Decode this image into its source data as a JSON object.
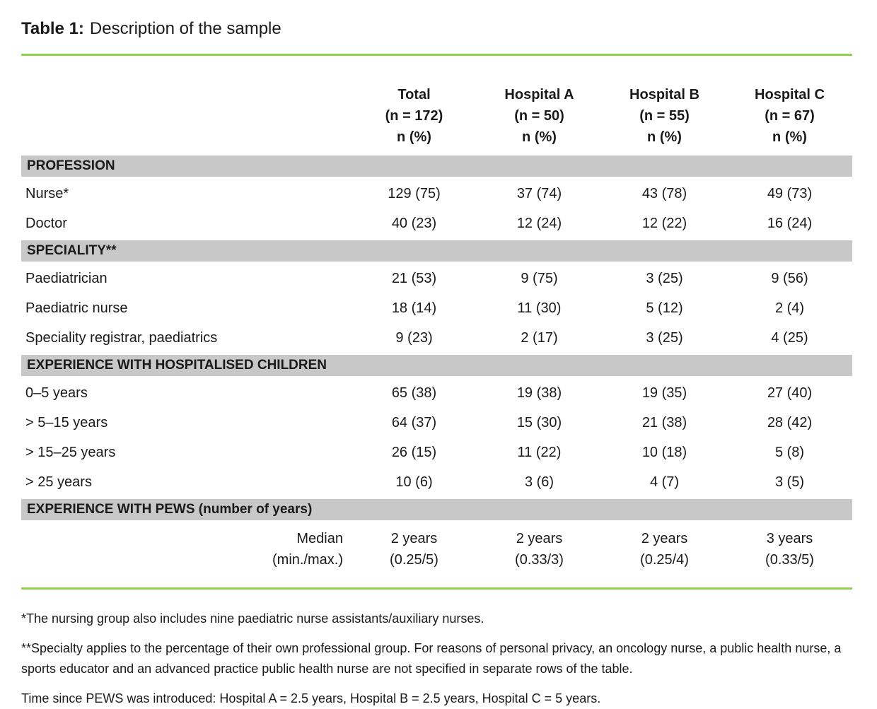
{
  "title": {
    "label": "Table 1:",
    "text": "Description of the sample"
  },
  "colors": {
    "accent_green": "#92d050",
    "section_gray": "#c8c8c8"
  },
  "table": {
    "columns": [
      {
        "label": "Total",
        "n": "(n = 172)",
        "unit": "n (%)"
      },
      {
        "label": "Hospital A",
        "n": "(n = 50)",
        "unit": "n (%)"
      },
      {
        "label": "Hospital B",
        "n": "(n = 55)",
        "unit": "n (%)"
      },
      {
        "label": "Hospital C",
        "n": "(n = 67)",
        "unit": "n (%)"
      }
    ],
    "sections": [
      {
        "header": "PROFESSION",
        "rows": [
          {
            "label": "Nurse*",
            "values": [
              "129 (75)",
              "37 (74)",
              "43 (78)",
              "49 (73)"
            ]
          },
          {
            "label": "Doctor",
            "values": [
              "40 (23)",
              "12 (24)",
              "12 (22)",
              "16 (24)"
            ]
          }
        ]
      },
      {
        "header": "SPECIALITY**",
        "rows": [
          {
            "label": "Paediatrician",
            "values": [
              "21 (53)",
              "9 (75)",
              "3 (25)",
              "9 (56)"
            ]
          },
          {
            "label": "Paediatric nurse",
            "values": [
              "18 (14)",
              "11 (30)",
              "5 (12)",
              "2 (4)"
            ]
          },
          {
            "label": "Speciality registrar, paediatrics",
            "values": [
              "9 (23)",
              "2 (17)",
              "3 (25)",
              "4 (25)"
            ]
          }
        ]
      },
      {
        "header": "EXPERIENCE WITH HOSPITALISED CHILDREN",
        "rows": [
          {
            "label": "0–5 years",
            "values": [
              "65 (38)",
              "19 (38)",
              "19 (35)",
              "27 (40)"
            ]
          },
          {
            "label": "> 5–15 years",
            "values": [
              "64 (37)",
              "15 (30)",
              "21 (38)",
              "28 (42)"
            ]
          },
          {
            "label": "> 15–25 years",
            "values": [
              "26 (15)",
              "11 (22)",
              "10 (18)",
              "5 (8)"
            ]
          },
          {
            "label": "> 25 years",
            "values": [
              "10 (6)",
              "3 (6)",
              "4 (7)",
              "3 (5)"
            ]
          }
        ]
      },
      {
        "header": "EXPERIENCE WITH PEWS (number of years)",
        "rows": [
          {
            "label": "Median\n(min./max.)",
            "label_align": "right",
            "values": [
              "2 years\n(0.25/5)",
              "2 years\n(0.33/3)",
              "2 years\n(0.25/4)",
              "3 years\n(0.33/5)"
            ]
          }
        ]
      }
    ]
  },
  "footnotes": [
    "*The nursing group also includes nine paediatric nurse assistants/auxiliary nurses.",
    "**Specialty applies to the percentage of their own professional group. For reasons of personal privacy, an oncology nurse, a public health nurse, a sports educator and an advanced practice public health nurse are not specified in separate rows of the table.",
    "Time since PEWS was introduced: Hospital A = 2.5 years, Hospital B = 2.5 years, Hospital C = 5 years."
  ]
}
